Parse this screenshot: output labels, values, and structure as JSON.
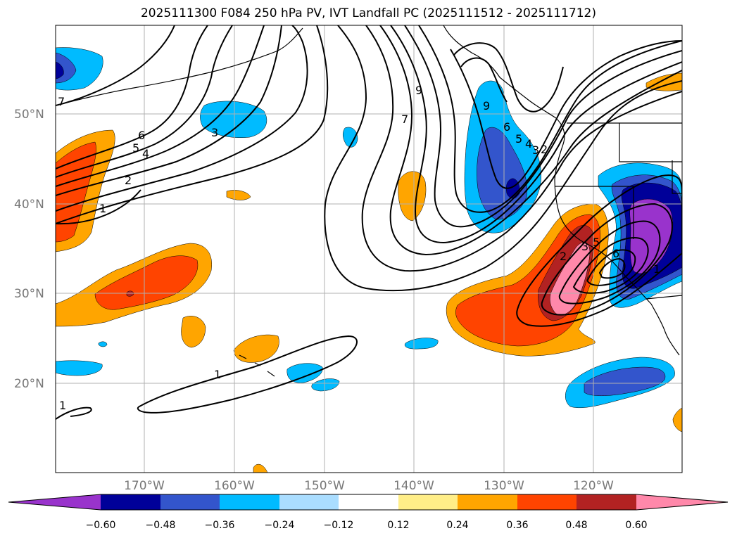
{
  "title": "2025111300 F084 250 hPa PV, IVT Landfall PC (2025111512 - 2025111712)",
  "colors": {
    "c_n60": "#9933cc",
    "c_n48": "#000099",
    "c_n36": "#3355cc",
    "c_n24": "#00bbff",
    "c_n12": "#aaddff",
    "c_zero": "#ffffff",
    "c_p12": "#ffee88",
    "c_p24": "#ffa500",
    "c_p36": "#ff4400",
    "c_p48": "#b22222",
    "c_p60": "#ff88aa"
  },
  "lat_labels": [
    "50°N",
    "40°N",
    "30°N",
    "20°N"
  ],
  "lon_labels": [
    "170°W",
    "160°W",
    "150°W",
    "140°W",
    "130°W",
    "120°W"
  ],
  "colorbar": {
    "ticks": [
      "−0.60",
      "−0.48",
      "−0.36",
      "−0.24",
      "−0.12",
      "0.12",
      "0.24",
      "0.36",
      "0.48",
      "0.60"
    ]
  },
  "contour_labels": {
    "w7": "7",
    "w6": "6",
    "w5": "5",
    "w4": "4",
    "w3": "3",
    "w2": "2",
    "w1": "1",
    "c9a": "9",
    "c9b": "9",
    "c7": "7",
    "c6": "6",
    "c5": "5",
    "c4": "4",
    "c3": "3",
    "c2": "2",
    "s2": "2",
    "s3": "3",
    "s5": "5",
    "s6": "6",
    "s1": "1",
    "t1a": "1",
    "t1b": "1"
  }
}
